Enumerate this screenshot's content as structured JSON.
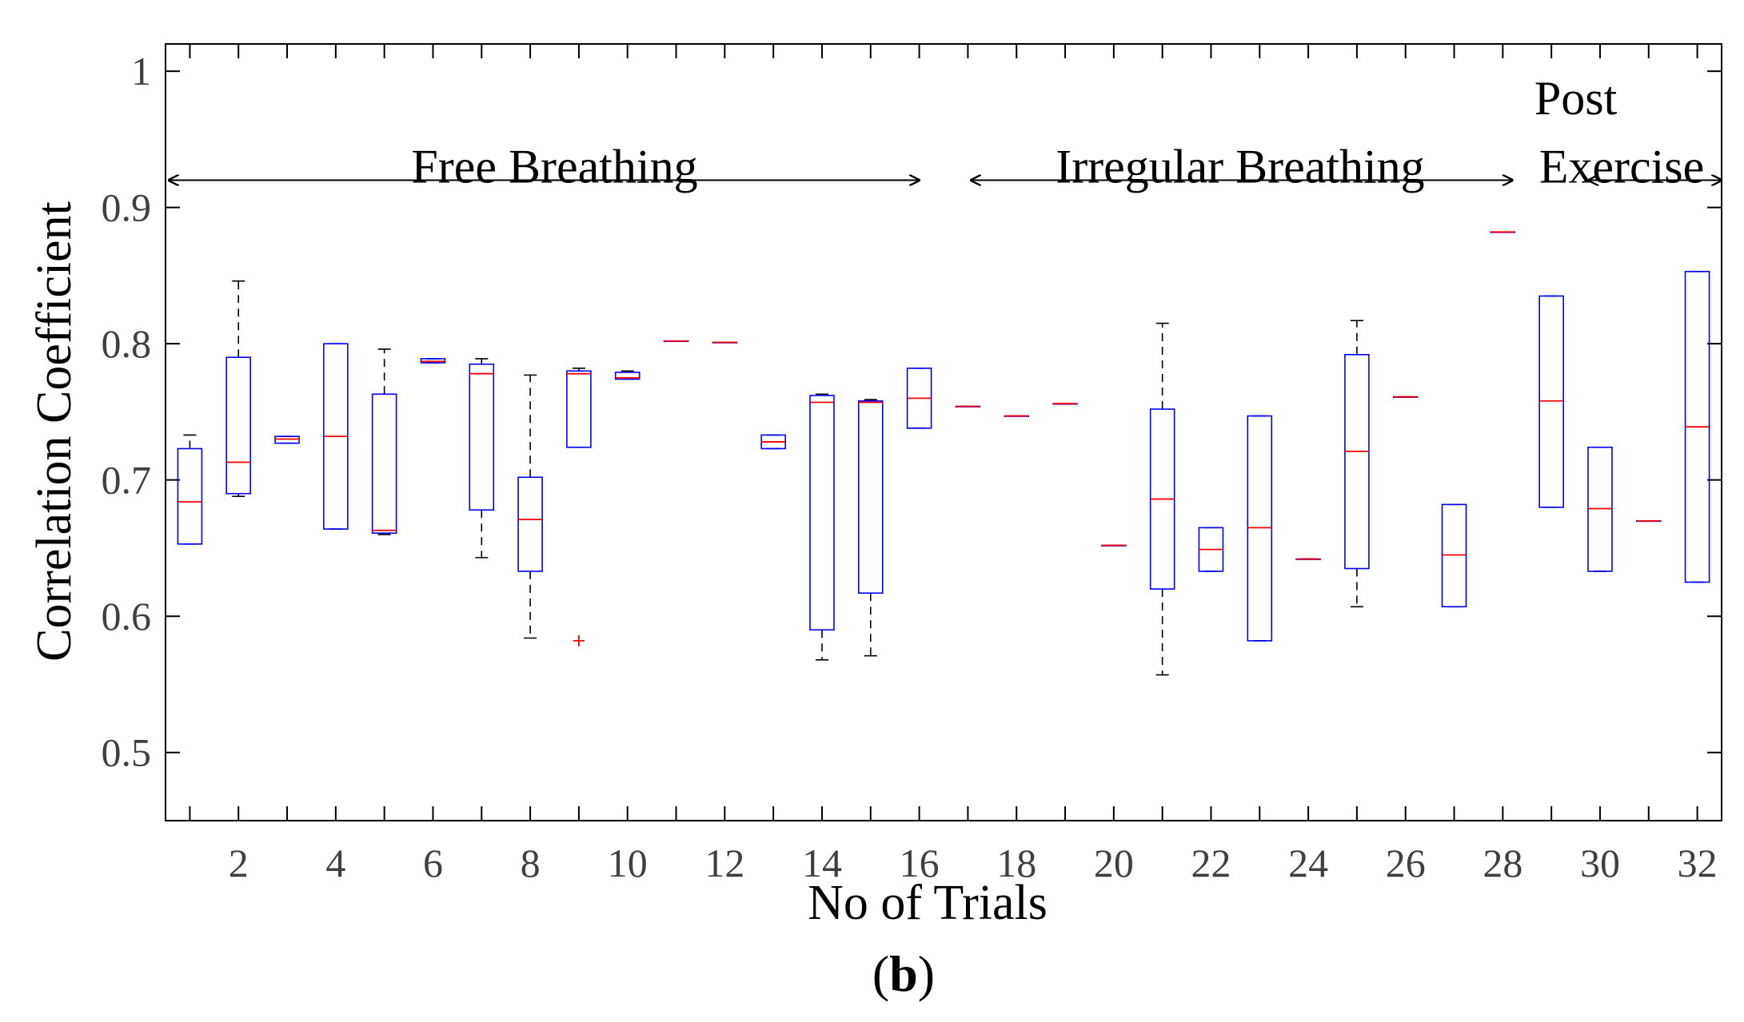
{
  "chart_data": {
    "type": "boxplot",
    "xlabel": "No of Trials",
    "ylabel": "Correlation Coefficient",
    "panel_label": {
      "open": "(",
      "letter": "b",
      "close": ")"
    },
    "ylim": [
      0.45,
      1.02
    ],
    "xlim": [
      0.5,
      32.5
    ],
    "yticks": [
      0.5,
      0.6,
      0.7,
      0.8,
      0.9,
      1
    ],
    "yticklabels": [
      "0.5",
      "0.6",
      "0.7",
      "0.8",
      "0.9",
      "1"
    ],
    "xticks": [
      2,
      4,
      6,
      8,
      10,
      12,
      14,
      16,
      18,
      20,
      22,
      24,
      26,
      28,
      30,
      32
    ],
    "xticklabels": [
      "2",
      "4",
      "6",
      "8",
      "10",
      "12",
      "14",
      "16",
      "18",
      "20",
      "22",
      "24",
      "26",
      "28",
      "30",
      "32"
    ],
    "colors": {
      "box": "#0000ff",
      "median": "#ff0000",
      "whisker": "#000000",
      "outlier": "#ff0000",
      "axis": "#000000"
    },
    "annotations": [
      {
        "text": "Free Breathing",
        "x_start": 0.5,
        "x_end": 16.0,
        "y": 0.92,
        "label_x": 8.5,
        "label_y": 0.93
      },
      {
        "text": "Irregular Breathing",
        "x_start": 17.0,
        "x_end": 28.2,
        "y": 0.92,
        "label_x": 22.6,
        "label_y": 0.93
      },
      {
        "text": "Post",
        "x_start": null,
        "x_end": null,
        "y": null,
        "label_x": 29.5,
        "label_y": 0.98
      },
      {
        "text": "Exercise",
        "x_start": 29.7,
        "x_end": 32.5,
        "y": 0.92,
        "label_x": 31.0,
        "label_y": 0.93
      }
    ],
    "boxes": [
      {
        "trial": 1,
        "whisker_low": 0.653,
        "q1": 0.653,
        "median": 0.684,
        "q3": 0.723,
        "whisker_high": 0.733,
        "outliers": []
      },
      {
        "trial": 2,
        "whisker_low": 0.688,
        "q1": 0.69,
        "median": 0.713,
        "q3": 0.79,
        "whisker_high": 0.846,
        "outliers": []
      },
      {
        "trial": 3,
        "whisker_low": 0.727,
        "q1": 0.727,
        "median": 0.73,
        "q3": 0.732,
        "whisker_high": 0.732,
        "outliers": []
      },
      {
        "trial": 4,
        "whisker_low": 0.664,
        "q1": 0.664,
        "median": 0.732,
        "q3": 0.8,
        "whisker_high": 0.8,
        "outliers": []
      },
      {
        "trial": 5,
        "whisker_low": 0.66,
        "q1": 0.661,
        "median": 0.663,
        "q3": 0.763,
        "whisker_high": 0.796,
        "outliers": []
      },
      {
        "trial": 6,
        "whisker_low": 0.786,
        "q1": 0.786,
        "median": 0.787,
        "q3": 0.789,
        "whisker_high": 0.789,
        "outliers": []
      },
      {
        "trial": 7,
        "whisker_low": 0.643,
        "q1": 0.678,
        "median": 0.778,
        "q3": 0.785,
        "whisker_high": 0.789,
        "outliers": []
      },
      {
        "trial": 8,
        "whisker_low": 0.584,
        "q1": 0.633,
        "median": 0.671,
        "q3": 0.702,
        "whisker_high": 0.777,
        "outliers": []
      },
      {
        "trial": 9,
        "whisker_low": 0.724,
        "q1": 0.724,
        "median": 0.778,
        "q3": 0.78,
        "whisker_high": 0.782,
        "outliers": [
          0.582
        ]
      },
      {
        "trial": 10,
        "whisker_low": 0.774,
        "q1": 0.774,
        "median": 0.775,
        "q3": 0.779,
        "whisker_high": 0.78,
        "outliers": []
      },
      {
        "trial": 11,
        "whisker_low": 0.802,
        "q1": 0.802,
        "median": 0.802,
        "q3": 0.802,
        "whisker_high": 0.802,
        "outliers": []
      },
      {
        "trial": 12,
        "whisker_low": 0.801,
        "q1": 0.801,
        "median": 0.801,
        "q3": 0.801,
        "whisker_high": 0.801,
        "outliers": []
      },
      {
        "trial": 13,
        "whisker_low": 0.723,
        "q1": 0.723,
        "median": 0.728,
        "q3": 0.733,
        "whisker_high": 0.733,
        "outliers": []
      },
      {
        "trial": 14,
        "whisker_low": 0.568,
        "q1": 0.59,
        "median": 0.757,
        "q3": 0.762,
        "whisker_high": 0.763,
        "outliers": []
      },
      {
        "trial": 15,
        "whisker_low": 0.571,
        "q1": 0.617,
        "median": 0.757,
        "q3": 0.758,
        "whisker_high": 0.759,
        "outliers": []
      },
      {
        "trial": 16,
        "whisker_low": 0.738,
        "q1": 0.738,
        "median": 0.76,
        "q3": 0.782,
        "whisker_high": 0.782,
        "outliers": []
      },
      {
        "trial": 17,
        "whisker_low": 0.754,
        "q1": 0.754,
        "median": 0.754,
        "q3": 0.754,
        "whisker_high": 0.754,
        "outliers": []
      },
      {
        "trial": 18,
        "whisker_low": 0.747,
        "q1": 0.747,
        "median": 0.747,
        "q3": 0.747,
        "whisker_high": 0.747,
        "outliers": []
      },
      {
        "trial": 19,
        "whisker_low": 0.756,
        "q1": 0.756,
        "median": 0.756,
        "q3": 0.756,
        "whisker_high": 0.756,
        "outliers": []
      },
      {
        "trial": 20,
        "whisker_low": 0.652,
        "q1": 0.652,
        "median": 0.652,
        "q3": 0.652,
        "whisker_high": 0.652,
        "outliers": []
      },
      {
        "trial": 21,
        "whisker_low": 0.557,
        "q1": 0.62,
        "median": 0.686,
        "q3": 0.752,
        "whisker_high": 0.815,
        "outliers": []
      },
      {
        "trial": 22,
        "whisker_low": 0.633,
        "q1": 0.633,
        "median": 0.649,
        "q3": 0.665,
        "whisker_high": 0.665,
        "outliers": []
      },
      {
        "trial": 23,
        "whisker_low": 0.582,
        "q1": 0.582,
        "median": 0.665,
        "q3": 0.747,
        "whisker_high": 0.747,
        "outliers": []
      },
      {
        "trial": 24,
        "whisker_low": 0.642,
        "q1": 0.642,
        "median": 0.642,
        "q3": 0.642,
        "whisker_high": 0.642,
        "outliers": []
      },
      {
        "trial": 25,
        "whisker_low": 0.607,
        "q1": 0.635,
        "median": 0.721,
        "q3": 0.792,
        "whisker_high": 0.817,
        "outliers": []
      },
      {
        "trial": 26,
        "whisker_low": 0.761,
        "q1": 0.761,
        "median": 0.761,
        "q3": 0.761,
        "whisker_high": 0.761,
        "outliers": []
      },
      {
        "trial": 27,
        "whisker_low": 0.607,
        "q1": 0.607,
        "median": 0.645,
        "q3": 0.682,
        "whisker_high": 0.682,
        "outliers": []
      },
      {
        "trial": 28,
        "whisker_low": 0.882,
        "q1": 0.882,
        "median": 0.882,
        "q3": 0.882,
        "whisker_high": 0.882,
        "outliers": []
      },
      {
        "trial": 29,
        "whisker_low": 0.68,
        "q1": 0.68,
        "median": 0.758,
        "q3": 0.835,
        "whisker_high": 0.835,
        "outliers": []
      },
      {
        "trial": 30,
        "whisker_low": 0.633,
        "q1": 0.633,
        "median": 0.679,
        "q3": 0.724,
        "whisker_high": 0.724,
        "outliers": []
      },
      {
        "trial": 31,
        "whisker_low": 0.67,
        "q1": 0.67,
        "median": 0.67,
        "q3": 0.67,
        "whisker_high": 0.67,
        "outliers": []
      },
      {
        "trial": 32,
        "whisker_low": 0.625,
        "q1": 0.625,
        "median": 0.739,
        "q3": 0.853,
        "whisker_high": 0.853,
        "outliers": []
      }
    ]
  }
}
